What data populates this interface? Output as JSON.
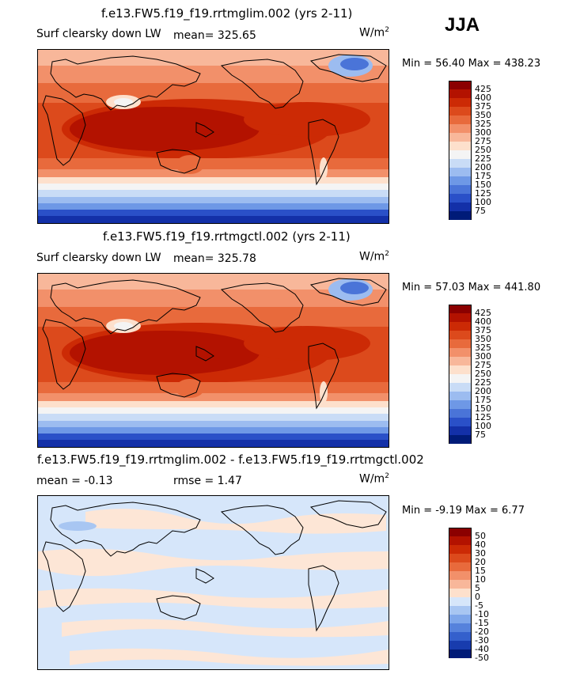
{
  "season": "JJA",
  "panels": [
    {
      "title": "f.e13.FW5.f19_f19.rrtmglim.002 (yrs 2-11)",
      "variable": "Surf clearsky down LW",
      "stat1": "mean=  325.65",
      "stat2": "",
      "units": "W/m",
      "units_exp": "2",
      "minmax": "Min =   56.40 Max =  438.23",
      "colorbar": {
        "labels": [
          "425",
          "400",
          "375",
          "350",
          "325",
          "300",
          "275",
          "250",
          "225",
          "200",
          "175",
          "150",
          "125",
          "100",
          "75"
        ],
        "colors": [
          "#8b0000",
          "#b31200",
          "#cc2a05",
          "#dc4a1c",
          "#e86a3c",
          "#f2906a",
          "#f8b79a",
          "#fde0cc",
          "#f4f4f4",
          "#c9dcf6",
          "#9cbcf0",
          "#6e98e6",
          "#4a74d8",
          "#2a50c8",
          "#1330a8",
          "#001b78"
        ]
      }
    },
    {
      "title": "f.e13.FW5.f19_f19.rrtmgctl.002 (yrs 2-11)",
      "variable": "Surf clearsky down LW",
      "stat1": "mean=  325.78",
      "stat2": "",
      "units": "W/m",
      "units_exp": "2",
      "minmax": "Min =   57.03 Max =  441.80",
      "colorbar": {
        "labels": [
          "425",
          "400",
          "375",
          "350",
          "325",
          "300",
          "275",
          "250",
          "225",
          "200",
          "175",
          "150",
          "125",
          "100",
          "75"
        ],
        "colors": [
          "#8b0000",
          "#b31200",
          "#cc2a05",
          "#dc4a1c",
          "#e86a3c",
          "#f2906a",
          "#f8b79a",
          "#fde0cc",
          "#f4f4f4",
          "#c9dcf6",
          "#9cbcf0",
          "#6e98e6",
          "#4a74d8",
          "#2a50c8",
          "#1330a8",
          "#001b78"
        ]
      }
    },
    {
      "title": "f.e13.FW5.f19_f19.rrtmglim.002 - f.e13.FW5.f19_f19.rrtmgctl.002",
      "variable": "",
      "stat1": "mean =   -0.13",
      "stat2": "rmse =    1.47",
      "units": "W/m",
      "units_exp": "2",
      "minmax": "Min =   -9.19 Max =    6.77",
      "colorbar": {
        "labels": [
          "50",
          "40",
          "30",
          "20",
          "15",
          "10",
          "5",
          "0",
          "-5",
          "-10",
          "-15",
          "-20",
          "-30",
          "-40",
          "-50"
        ],
        "colors": [
          "#8b0000",
          "#b31200",
          "#cc2a05",
          "#dc4a1c",
          "#e86a3c",
          "#f2906a",
          "#f8b79a",
          "#fde0cc",
          "#d6e6fa",
          "#a8c6f2",
          "#7ea6ea",
          "#5682dc",
          "#3460cc",
          "#183cae",
          "#001b78"
        ]
      }
    }
  ],
  "colors": {
    "difference_positive": "#fde6d6",
    "difference_negative": "#d6e6fa",
    "coastline": "#000000"
  }
}
